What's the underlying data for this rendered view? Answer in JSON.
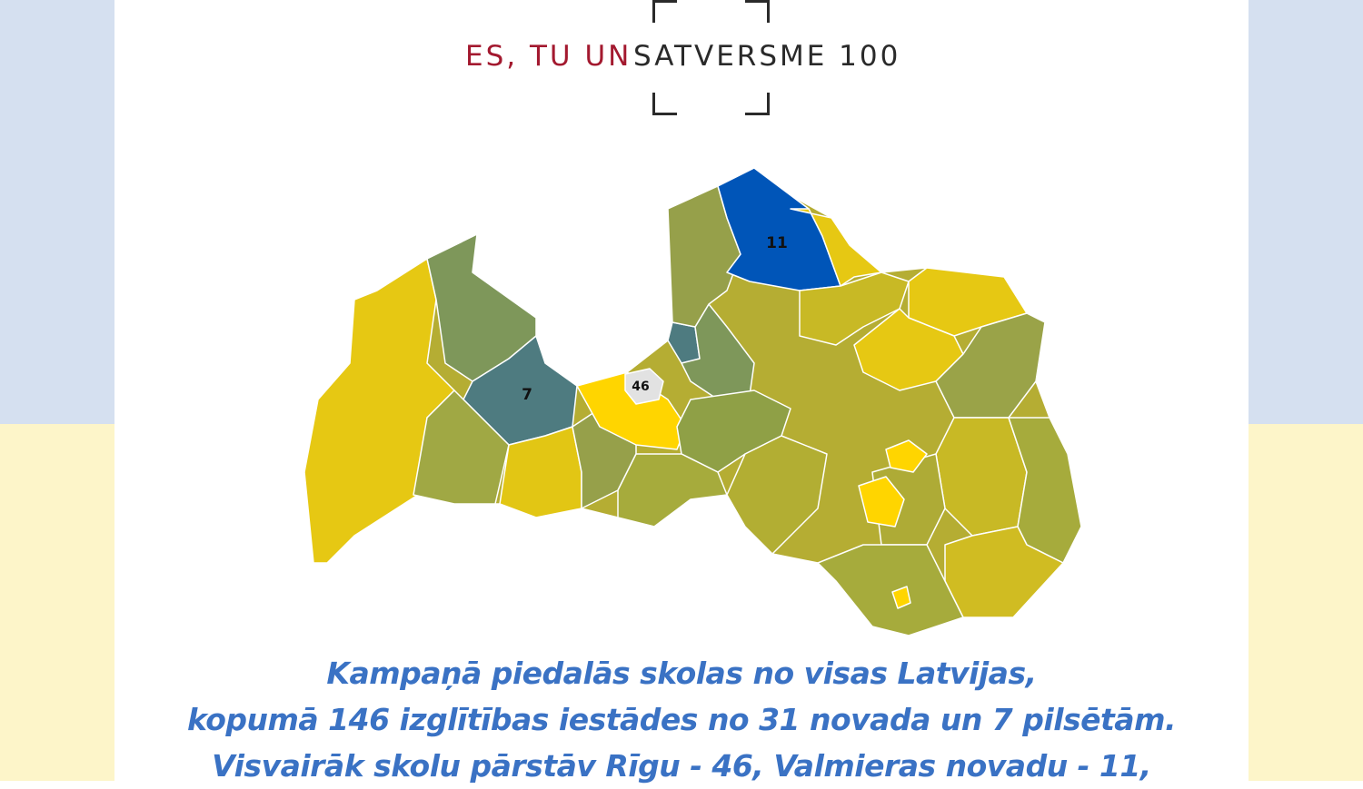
{
  "logo": {
    "part1": "ES, TU UN",
    "part2": "SATVERSME 100"
  },
  "map": {
    "colors": {
      "yellow": "#e6c813",
      "bright_yellow": "#ffd500",
      "olive": "#9aa348",
      "green": "#7e975a",
      "teal": "#4e7b80",
      "blue": "#0055b8",
      "riga": "#e2e2e2"
    },
    "labels": {
      "valmiera": "11",
      "tukums": "7",
      "riga": "46"
    }
  },
  "caption": {
    "line1": "Kampaņā piedalās skolas no visas Latvijas,",
    "line2": "kopumā 146 izglītības iestādes no 31 novada un 7 pilsētām.",
    "line3": "Visvairāk skolu pārstāv Rīgu - 46, Valmieras novadu - 11,"
  }
}
